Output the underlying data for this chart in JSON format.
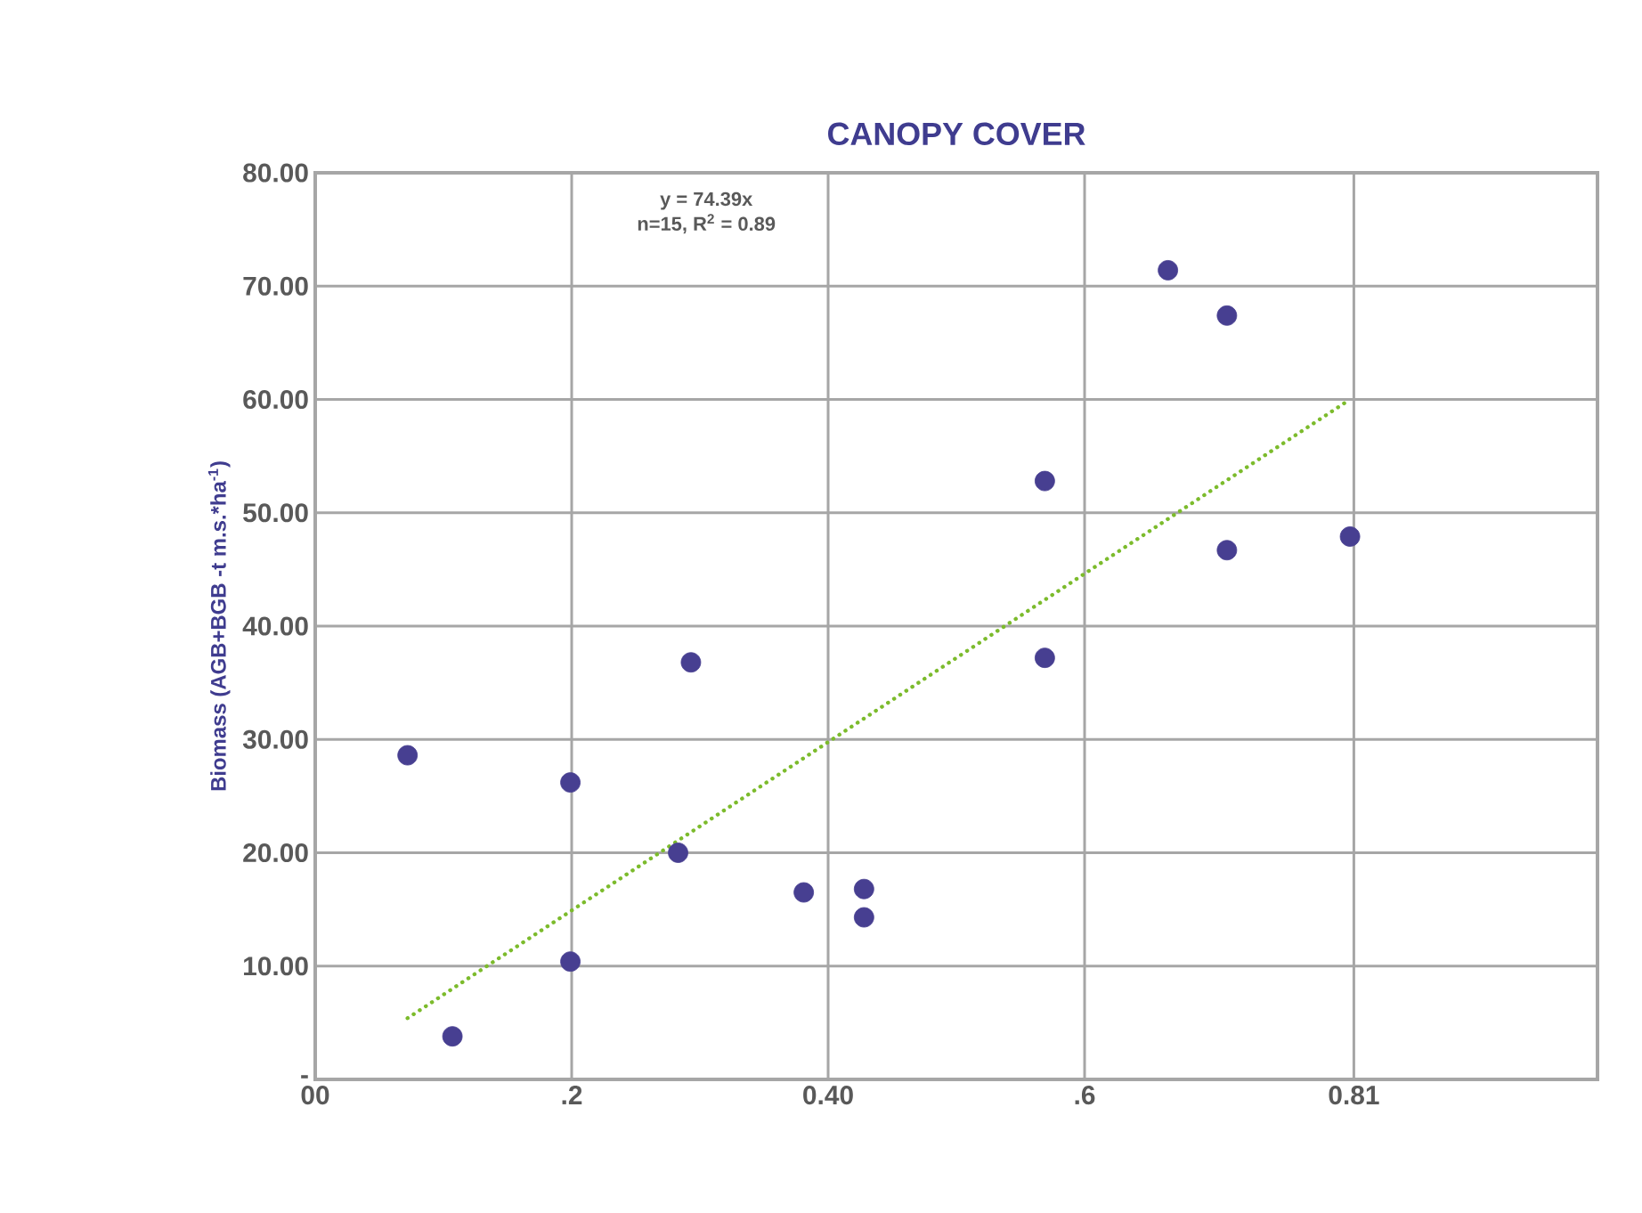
{
  "chart_data": {
    "type": "scatter",
    "title": "CANOPY COVER",
    "ylabel": "Biomass (AGB+BGB -t m.s.*ha$^{-1}$)",
    "annotations": [
      "y = 74.39x",
      "n=15, R$^{2}$ = 0.89"
    ],
    "xlim": [
      0,
      1.0
    ],
    "ylim": [
      0,
      80
    ],
    "xticks": [
      {
        "value": 0,
        "label": "00"
      },
      {
        "value": 0.2,
        "label": ".2"
      },
      {
        "value": 0.4,
        "label": "0.40"
      },
      {
        "value": 0.6,
        "label": ".6"
      },
      {
        "value": 0.81,
        "label": "0.81"
      }
    ],
    "yticks": [
      {
        "value": 0,
        "label": "-"
      },
      {
        "value": 10,
        "label": "10.00"
      },
      {
        "value": 20,
        "label": "20.00"
      },
      {
        "value": 30,
        "label": "30.00"
      },
      {
        "value": 40,
        "label": "40.00"
      },
      {
        "value": 50,
        "label": "50.00"
      },
      {
        "value": 60,
        "label": "60.00"
      },
      {
        "value": 70,
        "label": "70.00"
      },
      {
        "value": 80,
        "label": "80.00"
      }
    ],
    "grid": true,
    "series": [
      {
        "color": "#473f91",
        "marker": "circle",
        "x": [
          0.072,
          0.107,
          0.199,
          0.199,
          0.283,
          0.293,
          0.381,
          0.428,
          0.428,
          0.569,
          0.569,
          0.665,
          0.711,
          0.711,
          0.807
        ],
        "values": [
          28.6,
          3.8,
          26.2,
          10.4,
          20.0,
          36.8,
          16.5,
          16.8,
          14.3,
          52.8,
          37.2,
          71.4,
          67.4,
          46.7,
          47.9
        ]
      },
      {
        "type": "line",
        "color": "#7cbb2c",
        "marker": "none",
        "line_style": "dotted",
        "x": [
          0.072,
          0.807
        ],
        "values": [
          5.4,
          60.0
        ]
      }
    ]
  }
}
